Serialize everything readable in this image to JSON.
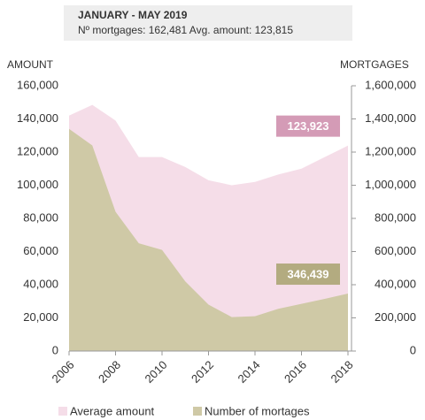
{
  "chart_data": {
    "type": "area",
    "title": "JANUARY - MAY 2019",
    "subtitle": "Nº mortgages: 162,481 Avg. amount: 123,815",
    "y_label": "AMOUNT",
    "y2_label": "MORTGAGES",
    "x": [
      2006,
      2007,
      2008,
      2009,
      2010,
      2011,
      2012,
      2013,
      2014,
      2015,
      2016,
      2017,
      2018
    ],
    "xlim": [
      2006,
      2018
    ],
    "xticks": [
      2006,
      2008,
      2010,
      2012,
      2014,
      2016,
      2018
    ],
    "ylim": [
      0,
      160000
    ],
    "yticks": [
      0,
      {
        "value": 20000,
        "label": "20,000"
      },
      {
        "value": 40000,
        "label": "40,000"
      },
      {
        "value": 60000,
        "label": "60,000"
      },
      {
        "value": 80000,
        "label": "80,000"
      },
      {
        "value": 100000,
        "label": "100,000"
      },
      {
        "value": 120000,
        "label": "120,000"
      },
      {
        "value": 140000,
        "label": "140,000"
      },
      {
        "value": 160000,
        "label": "160,000"
      }
    ],
    "y2lim": [
      0,
      1600000
    ],
    "y2ticks": [
      0,
      {
        "value": 200000,
        "label": "200,000"
      },
      {
        "value": 400000,
        "label": "400,000"
      },
      {
        "value": 600000,
        "label": "600,000"
      },
      {
        "value": 800000,
        "label": "800,000"
      },
      {
        "value": 1000000,
        "label": "1,000,000"
      },
      {
        "value": 1200000,
        "label": "1,200,000"
      },
      {
        "value": 1400000,
        "label": "1,400,000"
      },
      {
        "value": 1600000,
        "label": "1,600,000"
      }
    ],
    "series": [
      {
        "name": "Average amount",
        "color": "#f5dde8",
        "label_color": "#d49bb6",
        "values": [
          142000,
          148500,
          139000,
          117000,
          117000,
          111000,
          103000,
          100000,
          102000,
          106500,
          110000,
          117000,
          123923
        ],
        "value_labels": [
          null,
          null,
          null,
          null,
          null,
          null,
          null,
          null,
          null,
          null,
          null,
          null,
          "123,923"
        ]
      },
      {
        "name": "Number of mortages",
        "color": "#cfc9a6",
        "label_color": "#b3ab80",
        "axis": "y2",
        "values": [
          1340000,
          1240000,
          840000,
          650000,
          610000,
          420000,
          280000,
          205000,
          210000,
          255000,
          285000,
          315000,
          346439
        ],
        "value_labels": [
          null,
          null,
          null,
          null,
          null,
          null,
          null,
          null,
          null,
          null,
          null,
          null,
          "346,439"
        ]
      }
    ]
  }
}
